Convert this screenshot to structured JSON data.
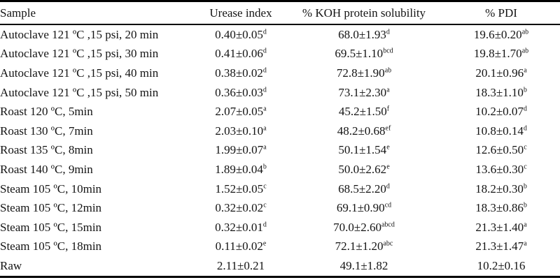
{
  "table": {
    "columns": [
      "Sample",
      "Urease index",
      "% KOH protein solubility",
      "% PDI"
    ],
    "rows": [
      {
        "sample": "Autoclave 121 ºC ,15 psi, 20 min",
        "cells": [
          {
            "value": "0.40±0.05",
            "sup": "d"
          },
          {
            "value": "68.0±1.93",
            "sup": "d"
          },
          {
            "value": "19.6±0.20",
            "sup": "ab"
          }
        ]
      },
      {
        "sample": "Autoclave 121 ºC ,15 psi, 30 min",
        "cells": [
          {
            "value": "0.41±0.06",
            "sup": "d"
          },
          {
            "value": "69.5±1.10",
            "sup": "bcd"
          },
          {
            "value": "19.8±1.70",
            "sup": "ab"
          }
        ]
      },
      {
        "sample": "Autoclave 121 ºC ,15 psi, 40 min",
        "cells": [
          {
            "value": "0.38±0.02",
            "sup": "d"
          },
          {
            "value": "72.8±1.90",
            "sup": "ab"
          },
          {
            "value": "20.1±0.96",
            "sup": "a"
          }
        ]
      },
      {
        "sample": "Autoclave 121 ºC ,15 psi, 50 min",
        "cells": [
          {
            "value": "0.36±0.03",
            "sup": "d"
          },
          {
            "value": "73.1±2.30",
            "sup": "a"
          },
          {
            "value": "18.3±1.10",
            "sup": "b"
          }
        ]
      },
      {
        "sample": "Roast 120 ºC, 5min",
        "cells": [
          {
            "value": "2.07±0.05",
            "sup": "a"
          },
          {
            "value": "45.2±1.50",
            "sup": "f"
          },
          {
            "value": "10.2±0.07",
            "sup": "d"
          }
        ]
      },
      {
        "sample": "Roast 130 ºC, 7min",
        "cells": [
          {
            "value": "2.03±0.10",
            "sup": "a"
          },
          {
            "value": "48.2±0.68",
            "sup": "ef"
          },
          {
            "value": "10.8±0.14",
            "sup": "d"
          }
        ]
      },
      {
        "sample": "Roast 135 ºC, 8min",
        "cells": [
          {
            "value": "1.99±0.07",
            "sup": "a"
          },
          {
            "value": "50.1±1.54",
            "sup": "e"
          },
          {
            "value": "12.6±0.50",
            "sup": "c"
          }
        ]
      },
      {
        "sample": "Roast 140 ºC, 9min",
        "cells": [
          {
            "value": "1.89±0.04",
            "sup": "b"
          },
          {
            "value": "50.0±2.62",
            "sup": "e"
          },
          {
            "value": "13.6±0.30",
            "sup": "c"
          }
        ]
      },
      {
        "sample": "Steam 105 ºC, 10min",
        "cells": [
          {
            "value": "1.52±0.05",
            "sup": "c"
          },
          {
            "value": "68.5±2.20",
            "sup": "d"
          },
          {
            "value": "18.2±0.30",
            "sup": "b"
          }
        ]
      },
      {
        "sample": "Steam 105 ºC, 12min",
        "cells": [
          {
            "value": "0.32±0.02",
            "sup": "c"
          },
          {
            "value": "69.1±0.90",
            "sup": "cd"
          },
          {
            "value": "18.3±0.86",
            "sup": "b"
          }
        ]
      },
      {
        "sample": "Steam 105 ºC, 15min",
        "cells": [
          {
            "value": "0.32±0.01",
            "sup": "d"
          },
          {
            "value": "70.0±2.60",
            "sup": "abcd"
          },
          {
            "value": "21.3±1.40",
            "sup": "a"
          }
        ]
      },
      {
        "sample": "Steam 105 ºC, 18min",
        "cells": [
          {
            "value": "0.11±0.02",
            "sup": "e"
          },
          {
            "value": "72.1±1.20",
            "sup": "abc"
          },
          {
            "value": "21.3±1.47",
            "sup": "a"
          }
        ]
      },
      {
        "sample": "Raw",
        "cells": [
          {
            "value": "2.11±0.21",
            "sup": ""
          },
          {
            "value": "49.1±1.82",
            "sup": ""
          },
          {
            "value": "10.2±0.16",
            "sup": ""
          }
        ]
      }
    ]
  }
}
